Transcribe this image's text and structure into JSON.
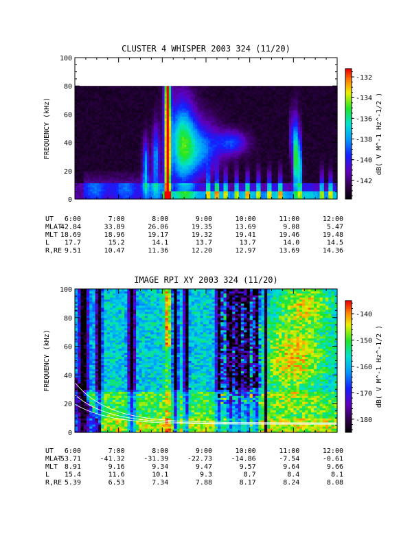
{
  "chart_data": [
    {
      "type": "heatmap",
      "title": "CLUSTER 4 WHISPER 2003 324 (11/20)",
      "ylabel": "FREQUENCY (kHz)",
      "ylim": [
        0,
        100
      ],
      "yticks": [
        "0",
        "20",
        "40",
        "60",
        "80",
        "100"
      ],
      "xlim": [
        "6:00",
        "12:00"
      ],
      "data_max_freq_khz": 80,
      "colorbar": {
        "label": "dB( V M^-1 Hz^-1/2 )",
        "range": [
          -143.8,
          -131.2
        ],
        "ticks": [
          "-132",
          "-134",
          "-136",
          "-138",
          "-140",
          "-142"
        ],
        "tick_values": [
          -132,
          -134,
          -136,
          -138,
          -140,
          -142
        ]
      },
      "ephemeris": [
        {
          "label": "UT",
          "values": [
            "6:00",
            "7:00",
            "8:00",
            "9:00",
            "10:00",
            "11:00",
            "12:00"
          ]
        },
        {
          "label": "MLAT",
          "values": [
            "42.84",
            "33.89",
            "26.06",
            "19.35",
            "13.69",
            "9.08",
            "5.47"
          ]
        },
        {
          "label": "MLT",
          "values": [
            "18.69",
            "18.96",
            "19.17",
            "19.32",
            "19.41",
            "19.46",
            "19.48"
          ]
        },
        {
          "label": "L",
          "values": [
            "17.7",
            "15.2",
            "14.1",
            "13.7",
            "13.7",
            "14.0",
            "14.5"
          ]
        },
        {
          "label": "R,RE",
          "values": [
            "9.51",
            "10.47",
            "11.36",
            "12.20",
            "12.97",
            "13.69",
            "14.36"
          ]
        }
      ]
    },
    {
      "type": "heatmap",
      "title": "IMAGE RPI XY 2003 324 (11/20)",
      "ylabel": "FREQUENCY (kHz)",
      "ylim": [
        0,
        100
      ],
      "yticks": [
        "0",
        "20",
        "40",
        "60",
        "80",
        "100"
      ],
      "xlim": [
        "6:00",
        "12:00"
      ],
      "colorbar": {
        "label": "dB( V M^-1 Hz^-1/2 )",
        "range": [
          -185,
          -135
        ],
        "ticks": [
          "-140",
          "-150",
          "-160",
          "-170",
          "-180"
        ],
        "tick_values": [
          -140,
          -150,
          -160,
          -170,
          -180
        ]
      },
      "ephemeris": [
        {
          "label": "UT",
          "values": [
            "6:00",
            "7:00",
            "8:00",
            "9:00",
            "10:00",
            "11:00",
            "12:00"
          ]
        },
        {
          "label": "MLAT",
          "values": [
            "-53.71",
            "-41.32",
            "-31.39",
            "-22.73",
            "-14.86",
            "-7.54",
            "-0.61"
          ]
        },
        {
          "label": "MLT",
          "values": [
            "8.91",
            "9.16",
            "9.34",
            "9.47",
            "9.57",
            "9.64",
            "9.66"
          ]
        },
        {
          "label": "L",
          "values": [
            "15.4",
            "11.6",
            "10.1",
            "9.3",
            "8.7",
            "8.4",
            "8.1"
          ]
        },
        {
          "label": "R,RE",
          "values": [
            "5.39",
            "6.53",
            "7.34",
            "7.88",
            "8.17",
            "8.24",
            "8.08"
          ]
        }
      ]
    }
  ]
}
